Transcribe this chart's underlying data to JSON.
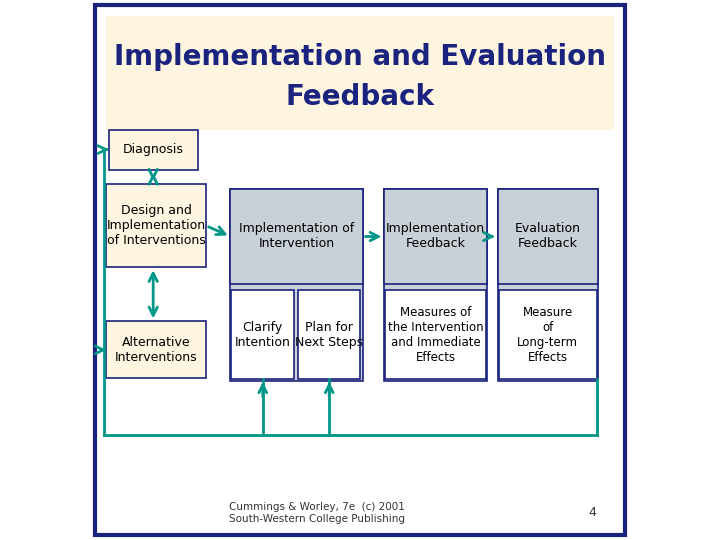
{
  "title_line1": "Implementation and Evaluation",
  "title_line2": "Feedback",
  "title_bg": "#fdf5e0",
  "title_color": "#1a237e",
  "bg_color": "#ffffff",
  "border_color": "#1a237e",
  "arrow_color": "#009688",
  "box_border_color": "#1a237e",
  "box_fill_white": "#ffffff",
  "box_fill_gray": "#c8d0d8",
  "box_fill_peach": "#fdf5e0",
  "text_color": "#000000",
  "footer": "Cummings & Worley, 7e  (c) 2001\nSouth-Western College Publishing",
  "page_num": "4"
}
